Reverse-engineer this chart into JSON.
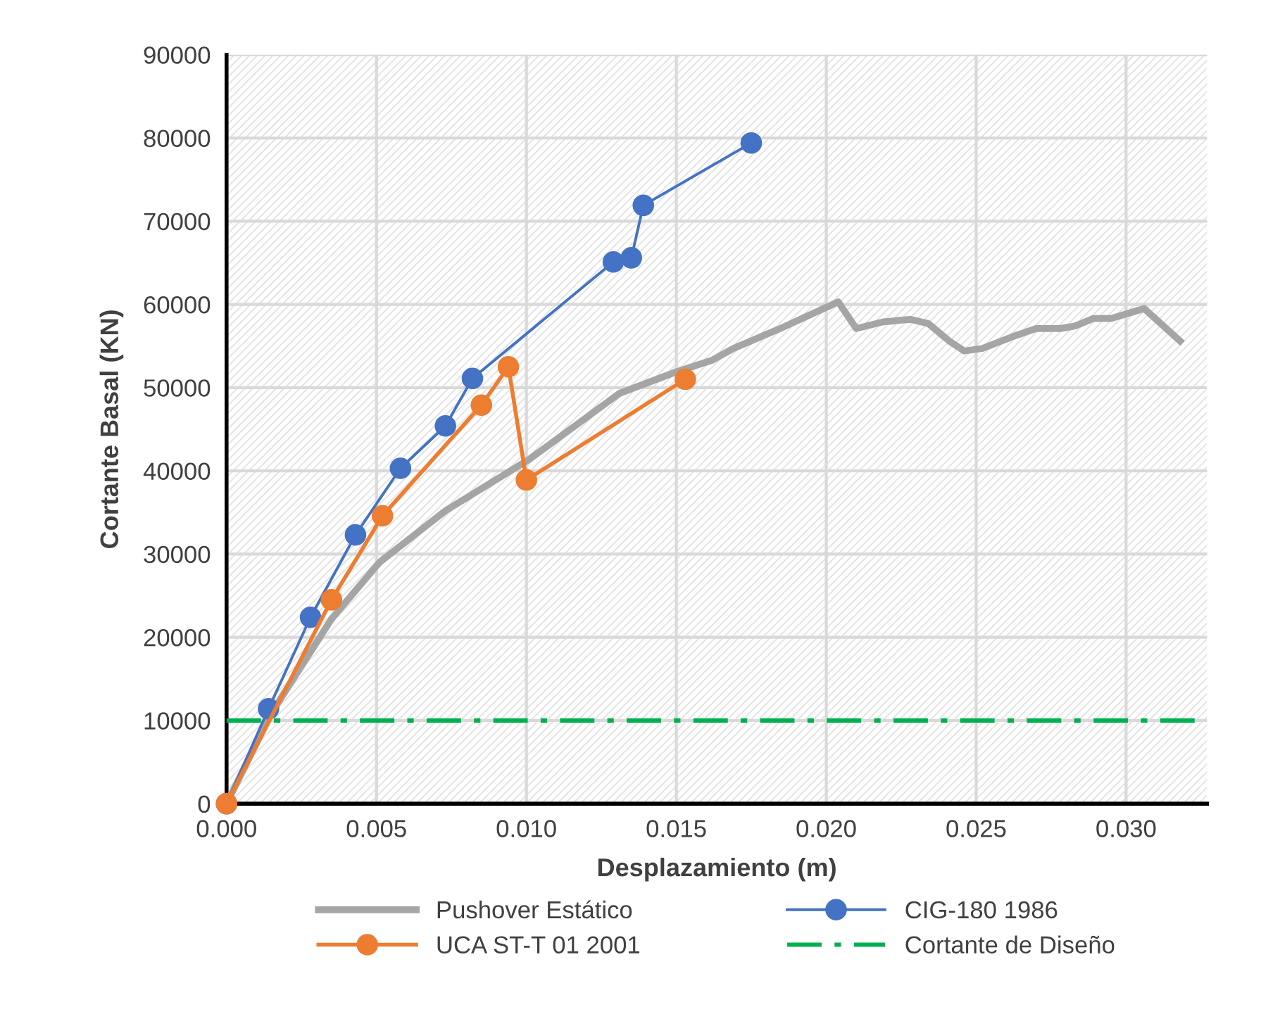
{
  "chart_data": {
    "type": "line",
    "xlabel": "Desplazamiento (m)",
    "ylabel": "Cortante Basal (KN)",
    "xlim": [
      0,
      0.0327
    ],
    "xticks": [
      {
        "value": 0,
        "label": "0.000"
      },
      {
        "value": 0.005,
        "label": "0.005"
      },
      {
        "value": 0.01,
        "label": "0.010"
      },
      {
        "value": 0.015,
        "label": "0.015"
      },
      {
        "value": 0.02,
        "label": "0.020"
      },
      {
        "value": 0.025,
        "label": "0.025"
      },
      {
        "value": 0.03,
        "label": "0.030"
      }
    ],
    "ylim": [
      0,
      90000
    ],
    "yticks": [
      0,
      10000,
      20000,
      30000,
      40000,
      50000,
      60000,
      70000,
      80000,
      90000
    ],
    "grid": true,
    "legend": "bottom",
    "series": [
      {
        "name": "Pushover Estático",
        "color": "#a5a5a5",
        "marker": "none",
        "line_style": "solid",
        "x": [
          0,
          0.0015,
          0.0035,
          0.0051,
          0.0073,
          0.0101,
          0.0131,
          0.015,
          0.0162,
          0.0169,
          0.0184,
          0.0204,
          0.021,
          0.0219,
          0.0228,
          0.0234,
          0.0241,
          0.0246,
          0.0252,
          0.0262,
          0.027,
          0.0278,
          0.0283,
          0.0289,
          0.0295,
          0.0306,
          0.0318
        ],
        "values": [
          0,
          10900,
          22200,
          29000,
          35200,
          41400,
          49300,
          51900,
          53300,
          54700,
          57000,
          60300,
          57100,
          57900,
          58200,
          57700,
          55600,
          54400,
          54700,
          56100,
          57100,
          57100,
          57400,
          58300,
          58300,
          59500,
          55600
        ]
      },
      {
        "name": "CIG-180 1986",
        "color": "#4472c4",
        "marker": "circle",
        "line_style": "solid",
        "x": [
          0,
          0.0014,
          0.0028,
          0.0043,
          0.0058,
          0.0073,
          0.0082,
          0.0129,
          0.0135,
          0.0139,
          0.0175
        ],
        "values": [
          0,
          11400,
          22400,
          32300,
          40300,
          45400,
          51100,
          65100,
          65600,
          71900,
          79400
        ]
      },
      {
        "name": "UCA ST-T 01 2001",
        "color": "#ed7d31",
        "marker": "circle",
        "line_style": "solid",
        "x": [
          0,
          0.0035,
          0.0052,
          0.0085,
          0.0094,
          0.01,
          0.0153
        ],
        "values": [
          0,
          24500,
          34600,
          47900,
          52500,
          38900,
          51000
        ]
      },
      {
        "name": "Cortante de Diseño",
        "color": "#00b050",
        "marker": "none",
        "line_style": "dashdot",
        "x": [
          0,
          0.0327
        ],
        "values": [
          10000,
          10000
        ]
      }
    ]
  }
}
